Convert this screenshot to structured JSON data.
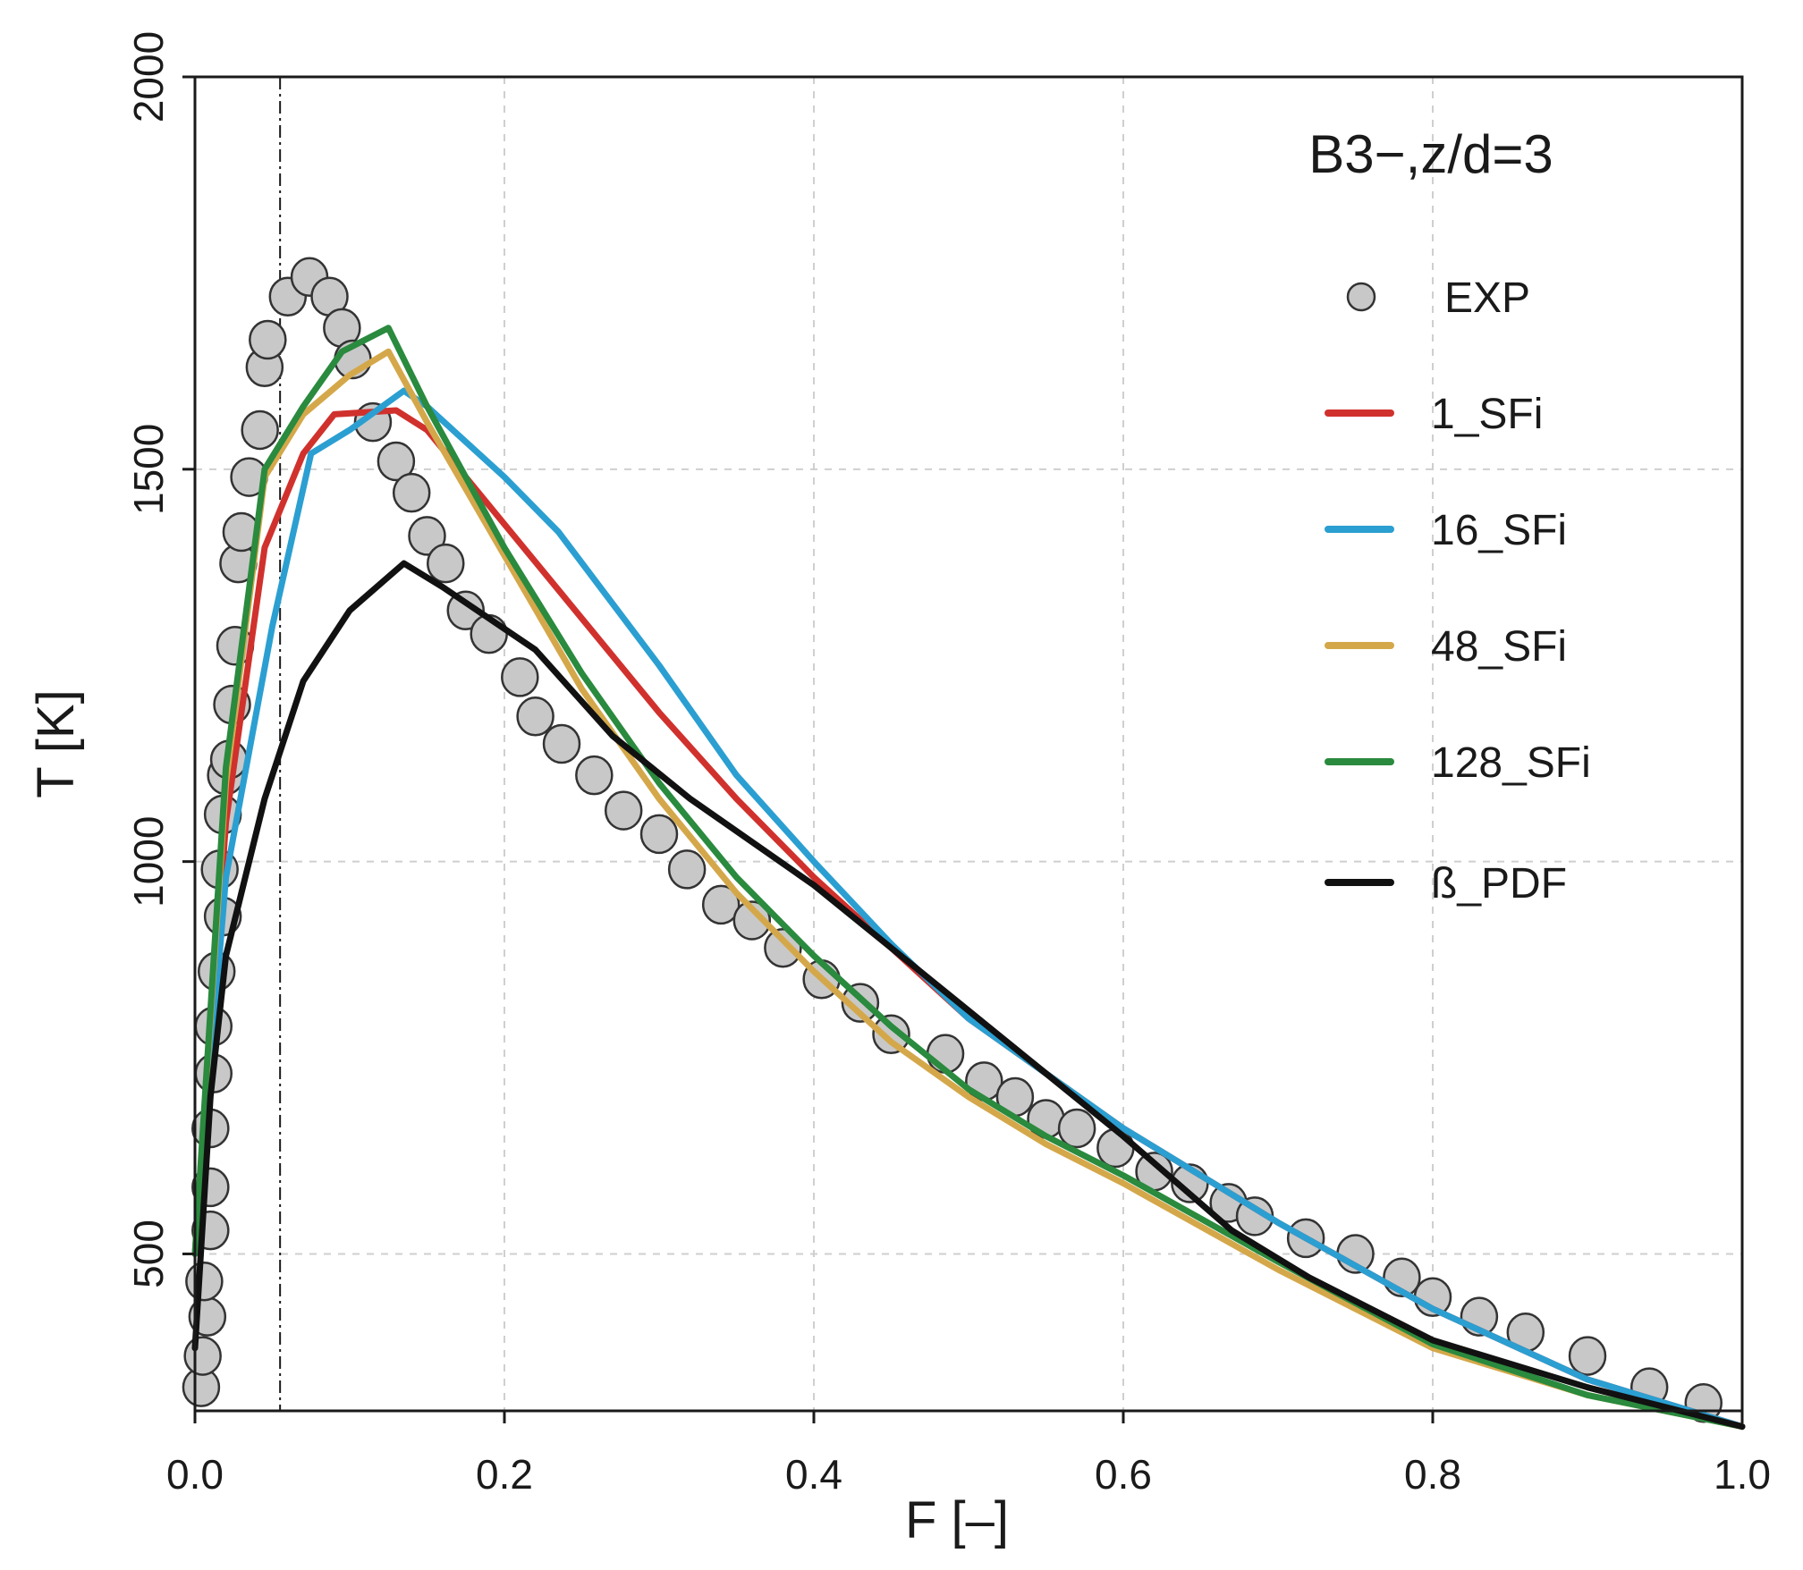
{
  "chart_data": {
    "type": "scatter+line",
    "panel_label": "B3−,z/d=3",
    "xlabel": "F [–]",
    "ylabel": "T [K]",
    "xlim": [
      0,
      1
    ],
    "ylim": [
      300,
      2000
    ],
    "xticks": [
      0.0,
      0.2,
      0.4,
      0.6,
      0.8,
      1.0
    ],
    "xtick_labels": [
      "0.0",
      "0.2",
      "0.4",
      "0.6",
      "0.8",
      "1.0"
    ],
    "yticks": [
      500,
      1000,
      1500,
      2000
    ],
    "ytick_labels": [
      "500",
      "1000",
      "1500",
      "2000"
    ],
    "grid": true,
    "legend_position": "top-right",
    "reference_line_x": 0.055,
    "scatter": {
      "name": "EXP",
      "color": "#c8c8c8",
      "points": [
        [
          0.004,
          330
        ],
        [
          0.005,
          370
        ],
        [
          0.008,
          420
        ],
        [
          0.006,
          465
        ],
        [
          0.01,
          530
        ],
        [
          0.01,
          585
        ],
        [
          0.01,
          660
        ],
        [
          0.012,
          730
        ],
        [
          0.012,
          790
        ],
        [
          0.014,
          860
        ],
        [
          0.018,
          930
        ],
        [
          0.016,
          990
        ],
        [
          0.018,
          1060
        ],
        [
          0.02,
          1110
        ],
        [
          0.022,
          1130
        ],
        [
          0.024,
          1200
        ],
        [
          0.026,
          1275
        ],
        [
          0.028,
          1380
        ],
        [
          0.03,
          1420
        ],
        [
          0.035,
          1490
        ],
        [
          0.042,
          1550
        ],
        [
          0.045,
          1630
        ],
        [
          0.047,
          1665
        ],
        [
          0.06,
          1720
        ],
        [
          0.074,
          1745
        ],
        [
          0.087,
          1720
        ],
        [
          0.095,
          1680
        ],
        [
          0.102,
          1640
        ],
        [
          0.115,
          1560
        ],
        [
          0.13,
          1510
        ],
        [
          0.14,
          1470
        ],
        [
          0.15,
          1415
        ],
        [
          0.162,
          1380
        ],
        [
          0.175,
          1320
        ],
        [
          0.19,
          1290
        ],
        [
          0.21,
          1235
        ],
        [
          0.22,
          1185
        ],
        [
          0.237,
          1150
        ],
        [
          0.258,
          1110
        ],
        [
          0.277,
          1065
        ],
        [
          0.3,
          1035
        ],
        [
          0.318,
          990
        ],
        [
          0.34,
          945
        ],
        [
          0.36,
          925
        ],
        [
          0.38,
          890
        ],
        [
          0.405,
          850
        ],
        [
          0.43,
          820
        ],
        [
          0.45,
          780
        ],
        [
          0.485,
          755
        ],
        [
          0.51,
          720
        ],
        [
          0.53,
          700
        ],
        [
          0.55,
          672
        ],
        [
          0.57,
          660
        ],
        [
          0.595,
          635
        ],
        [
          0.62,
          605
        ],
        [
          0.643,
          590
        ],
        [
          0.668,
          565
        ],
        [
          0.685,
          548
        ],
        [
          0.718,
          520
        ],
        [
          0.75,
          500
        ],
        [
          0.78,
          470
        ],
        [
          0.8,
          445
        ],
        [
          0.83,
          420
        ],
        [
          0.86,
          400
        ],
        [
          0.9,
          370
        ],
        [
          0.94,
          330
        ],
        [
          0.975,
          310
        ]
      ]
    },
    "series": [
      {
        "name": "1_SFi",
        "color": "#d0312d",
        "x": [
          0.0,
          0.02,
          0.045,
          0.07,
          0.09,
          0.13,
          0.15,
          0.2,
          0.25,
          0.3,
          0.35,
          0.4,
          0.45,
          0.5,
          0.6,
          0.7,
          0.8,
          0.9,
          1.0
        ],
        "y": [
          500,
          1050,
          1400,
          1520,
          1570,
          1575,
          1550,
          1430,
          1310,
          1190,
          1080,
          980,
          890,
          800,
          660,
          540,
          430,
          340,
          280
        ]
      },
      {
        "name": "16_SFi",
        "color": "#2b9fd1",
        "x": [
          0.0,
          0.02,
          0.05,
          0.075,
          0.1,
          0.135,
          0.15,
          0.2,
          0.235,
          0.3,
          0.35,
          0.4,
          0.45,
          0.5,
          0.6,
          0.7,
          0.8,
          0.9,
          1.0
        ],
        "y": [
          500,
          980,
          1300,
          1520,
          1550,
          1600,
          1580,
          1490,
          1420,
          1250,
          1110,
          1000,
          895,
          800,
          660,
          540,
          430,
          340,
          280
        ]
      },
      {
        "name": "48_SFi",
        "color": "#d4a84a",
        "x": [
          0.0,
          0.02,
          0.045,
          0.07,
          0.1,
          0.125,
          0.15,
          0.2,
          0.25,
          0.3,
          0.35,
          0.4,
          0.45,
          0.5,
          0.55,
          0.6,
          0.7,
          0.8,
          0.9,
          1.0
        ],
        "y": [
          500,
          1100,
          1490,
          1570,
          1620,
          1650,
          1560,
          1390,
          1220,
          1080,
          960,
          860,
          770,
          700,
          640,
          590,
          480,
          380,
          320,
          280
        ]
      },
      {
        "name": "128_SFi",
        "color": "#2a8a3e",
        "x": [
          0.0,
          0.02,
          0.045,
          0.07,
          0.095,
          0.125,
          0.15,
          0.2,
          0.25,
          0.3,
          0.35,
          0.4,
          0.45,
          0.5,
          0.55,
          0.6,
          0.7,
          0.8,
          0.9,
          1.0
        ],
        "y": [
          500,
          1120,
          1500,
          1580,
          1650,
          1680,
          1580,
          1400,
          1240,
          1100,
          980,
          880,
          790,
          710,
          650,
          600,
          490,
          385,
          320,
          280
        ]
      },
      {
        "name": "ß_PDF",
        "color": "#111111",
        "x": [
          0.0,
          0.01,
          0.02,
          0.045,
          0.07,
          0.1,
          0.135,
          0.16,
          0.22,
          0.27,
          0.32,
          0.4,
          0.45,
          0.5,
          0.55,
          0.6,
          0.67,
          0.72,
          0.8,
          0.9,
          1.0
        ],
        "y": [
          380,
          700,
          880,
          1080,
          1230,
          1320,
          1380,
          1350,
          1270,
          1160,
          1080,
          970,
          890,
          810,
          730,
          650,
          530,
          470,
          390,
          330,
          280
        ]
      }
    ]
  }
}
